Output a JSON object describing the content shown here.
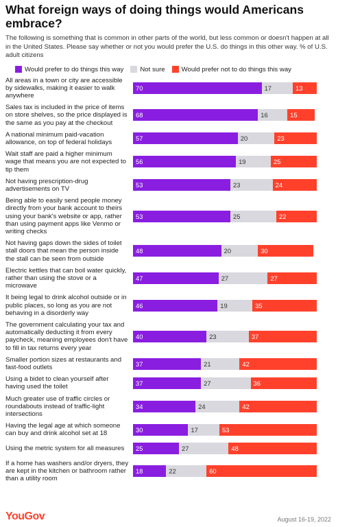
{
  "chart_data": {
    "type": "bar",
    "orientation": "horizontal",
    "stacked": true,
    "title": "What foreign ways of doing things would Americans embrace?",
    "subtitle": "The following is something that is common in other parts of the world, but less common or doesn't happen at all in the United States. Please say whether or not you would prefer the U.S. do things in this other way. % of U.S. adult citizens",
    "categories": [
      "All areas in a town or city are accessible by sidewalks, making it easier to walk anywhere",
      "Sales tax is included in the price of items on store shelves, so the price displayed is the same as you pay at the checkout",
      "A national minimum paid-vacation allowance, on top of federal holidays",
      "Wait staff are paid a higher minimum wage that means you are not expected to tip them",
      "Not having prescription-drug advertisements on TV",
      "Being able to easily send people money directly from your bank account to theirs using your bank's website or app, rather than using payment apps like Venmo or writing checks",
      "Not having gaps down the sides of toilet stall doors that mean the person inside the stall can be seen from outside",
      "Electric kettles that can boil water quickly, rather than using the stove or a microwave",
      "It being legal to drink alcohol outside or in public places, so long as you are not behaving in a disorderly way",
      "The government calculating your tax and automatically deducting it from every paycheck, meaning employees don't have to fill in tax returns every year",
      "Smaller portion sizes at restaurants and fast-food outlets",
      "Using a bidet to clean yourself after having used the toilet",
      "Much greater use of traffic circles or roundabouts instead of traffic-light intersections",
      "Having the legal age at which someone can buy and drink alcohol set at 18",
      "Using the metric system for all measures",
      "If a home has washers and/or dryers, they are kept in the kitchen or bathroom rather than a utility room"
    ],
    "series": [
      {
        "name": "Would prefer to do things this way",
        "color": "#8a1ee0",
        "label_color": "#ffffff",
        "values": [
          70,
          68,
          57,
          56,
          53,
          53,
          48,
          47,
          46,
          40,
          37,
          37,
          34,
          30,
          25,
          18
        ]
      },
      {
        "name": "Not sure",
        "color": "#d8d8de",
        "label_color": "#333333",
        "values": [
          17,
          16,
          20,
          19,
          23,
          25,
          20,
          27,
          19,
          23,
          21,
          27,
          24,
          17,
          27,
          22
        ]
      },
      {
        "name": "Would prefer not to do things this way",
        "color": "#ff412c",
        "label_color": "#ffffff",
        "values": [
          13,
          15,
          23,
          25,
          24,
          22,
          30,
          27,
          35,
          37,
          42,
          36,
          42,
          53,
          48,
          60
        ]
      }
    ],
    "xlim": [
      0,
      100
    ],
    "source": "YouGov",
    "date": "August 16-19, 2022"
  }
}
